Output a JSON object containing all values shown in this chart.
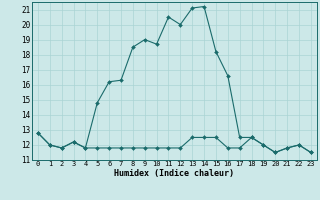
{
  "xlabel": "Humidex (Indice chaleur)",
  "xlim": [
    -0.5,
    23.5
  ],
  "ylim": [
    11,
    21.5
  ],
  "yticks": [
    11,
    12,
    13,
    14,
    15,
    16,
    17,
    18,
    19,
    20,
    21
  ],
  "xticks": [
    0,
    1,
    2,
    3,
    4,
    5,
    6,
    7,
    8,
    9,
    10,
    11,
    12,
    13,
    14,
    15,
    16,
    17,
    18,
    19,
    20,
    21,
    22,
    23
  ],
  "background_color": "#cce8e8",
  "grid_color": "#aad4d4",
  "line_color": "#1a6b6b",
  "series1_x": [
    0,
    1,
    2,
    3,
    4,
    5,
    6,
    7,
    8,
    9,
    10,
    11,
    12,
    13,
    14,
    15,
    16,
    17,
    18,
    19,
    20,
    21,
    22,
    23
  ],
  "series1_y": [
    12.8,
    12.0,
    11.8,
    12.2,
    11.8,
    11.8,
    11.8,
    11.8,
    11.8,
    11.8,
    11.8,
    11.8,
    11.8,
    12.5,
    12.5,
    12.5,
    11.8,
    11.8,
    12.5,
    12.0,
    11.5,
    11.8,
    12.0,
    11.5
  ],
  "series2_x": [
    0,
    1,
    2,
    3,
    4,
    5,
    6,
    7,
    8,
    9,
    10,
    11,
    12,
    13,
    14,
    15,
    16,
    17,
    18,
    19,
    20,
    21,
    22,
    23
  ],
  "series2_y": [
    12.8,
    12.0,
    11.8,
    12.2,
    11.8,
    14.8,
    16.2,
    16.3,
    18.5,
    19.0,
    18.7,
    20.5,
    20.0,
    21.1,
    21.2,
    18.2,
    16.6,
    12.5,
    12.5,
    12.0,
    11.5,
    11.8,
    12.0,
    11.5
  ]
}
